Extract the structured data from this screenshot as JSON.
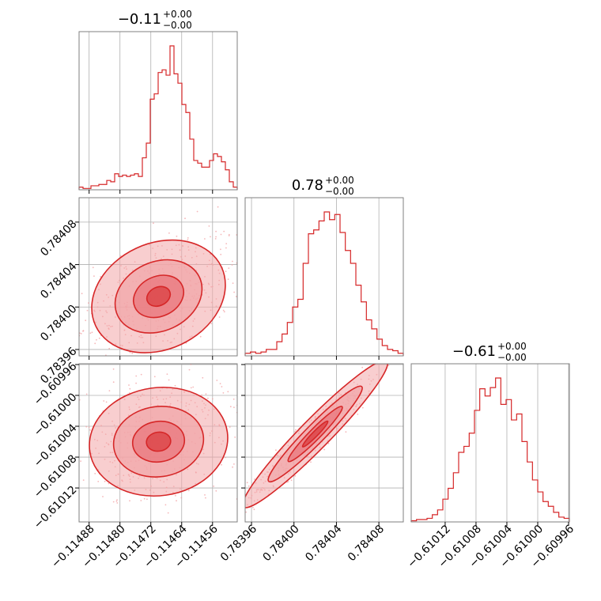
{
  "colors": {
    "accent": "#d62728",
    "fill_light": "#f2a5a8",
    "fill_mid": "#e87479",
    "grid": "#b0b0b0",
    "frame": "#7f7f7f"
  },
  "chart_data": {
    "type": "corner",
    "parameters": [
      {
        "title_value": "−0.11",
        "title_up": "+0.00",
        "title_down": "−0.00",
        "range": [
          -0.114906,
          -0.114496
        ],
        "ticks": [
          -0.11488,
          -0.1148,
          -0.11472,
          -0.11464,
          -0.11456
        ],
        "tick_labels": [
          "−0.11488",
          "−0.11480",
          "−0.11472",
          "−0.11464",
          "−0.11456"
        ],
        "hist": [
          2,
          1,
          1,
          3,
          3,
          4,
          4,
          7,
          6,
          12,
          10,
          11,
          10,
          11,
          12,
          10,
          24,
          35,
          68,
          72,
          88,
          90,
          86,
          108,
          87,
          80,
          64,
          58,
          38,
          22,
          20,
          17,
          17,
          22,
          27,
          25,
          21,
          15,
          6,
          2
        ]
      },
      {
        "title_value": "0.78",
        "title_up": "+0.00",
        "title_down": "−0.00",
        "range": [
          0.783954,
          0.784103
        ],
        "ticks": [
          0.78396,
          0.784,
          0.78404,
          0.78408
        ],
        "tick_labels": [
          "0.78396",
          "0.78400",
          "0.78404",
          "0.78408"
        ],
        "hist": [
          2,
          3,
          2,
          3,
          5,
          5,
          11,
          17,
          26,
          38,
          44,
          72,
          95,
          98,
          105,
          112,
          106,
          110,
          96,
          82,
          72,
          55,
          42,
          28,
          21,
          13,
          8,
          5,
          4,
          2
        ]
      },
      {
        "title_value": "−0.61",
        "title_up": "+0.00",
        "title_down": "−0.00",
        "range": [
          -0.610164,
          -0.609959
        ],
        "ticks": [
          -0.61012,
          -0.61008,
          -0.61004,
          -0.61,
          -0.60996
        ],
        "tick_labels": [
          "−0.61012",
          "−0.61008",
          "−0.61004",
          "−0.61000",
          "−0.60996"
        ],
        "hist": [
          1,
          2,
          2,
          3,
          6,
          10,
          19,
          28,
          41,
          58,
          63,
          74,
          93,
          111,
          105,
          112,
          120,
          98,
          102,
          85,
          90,
          67,
          50,
          35,
          25,
          17,
          13,
          8,
          4,
          3
        ]
      }
    ],
    "pairs": [
      {
        "x_param": 0,
        "y_param": 1,
        "mean": [
          -0.1147,
          0.78401
        ],
        "sd": [
          9e-05,
          2.5e-05
        ],
        "rho": 0.45
      },
      {
        "x_param": 0,
        "y_param": 2,
        "mean": [
          -0.1147,
          -0.61006
        ],
        "sd": [
          9e-05,
          3.5e-05
        ],
        "rho": 0.2
      },
      {
        "x_param": 1,
        "y_param": 2,
        "mean": [
          0.78402,
          -0.61005
        ],
        "sd": [
          2.5e-05,
          3.5e-05
        ],
        "rho": 0.95
      }
    ]
  }
}
